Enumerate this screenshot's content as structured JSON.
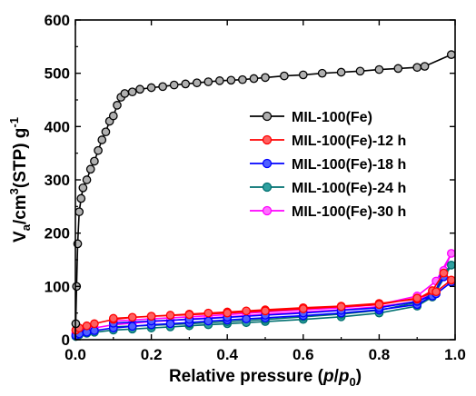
{
  "chart_data": {
    "type": "line",
    "xlabel": {
      "pre": "Relative pressure (",
      "p": "p",
      "slash": "/",
      "p0": "p",
      "sub0": "0",
      "post": ")"
    },
    "ylabel": {
      "pre": "V",
      "sub_a": "a",
      "mid": "/cm",
      "sup3": "3",
      "mid2": "(STP) g",
      "sup_neg1": "-1"
    },
    "xlim": [
      0,
      1.0
    ],
    "ylim": [
      0,
      600
    ],
    "xticks": [
      "0.0",
      "0.2",
      "0.4",
      "0.6",
      "0.8",
      "1.0"
    ],
    "yticks": [
      "0",
      "100",
      "200",
      "300",
      "400",
      "500",
      "600"
    ],
    "legend_position": "right-middle",
    "series": [
      {
        "name": "MIL-100(Fe)",
        "color": "#000000",
        "fill": "#b0b0b0",
        "x": [
          0.001,
          0.003,
          0.006,
          0.01,
          0.015,
          0.02,
          0.03,
          0.04,
          0.05,
          0.06,
          0.07,
          0.08,
          0.09,
          0.1,
          0.11,
          0.12,
          0.13,
          0.15,
          0.17,
          0.2,
          0.23,
          0.26,
          0.29,
          0.32,
          0.35,
          0.38,
          0.41,
          0.44,
          0.47,
          0.5,
          0.55,
          0.6,
          0.65,
          0.7,
          0.75,
          0.8,
          0.85,
          0.9,
          0.92,
          0.99
        ],
        "y": [
          30,
          100,
          180,
          240,
          265,
          285,
          300,
          320,
          335,
          355,
          375,
          390,
          410,
          420,
          440,
          455,
          462,
          465,
          470,
          473,
          475,
          478,
          480,
          482,
          484,
          486,
          487,
          488,
          490,
          492,
          495,
          497,
          500,
          502,
          504,
          507,
          509,
          511,
          513,
          535
        ]
      },
      {
        "name": "MIL-100(Fe)-12 h",
        "color": "#ff0000",
        "fill": "#ff6060",
        "x": [
          0.001,
          0.01,
          0.03,
          0.05,
          0.1,
          0.15,
          0.2,
          0.25,
          0.3,
          0.35,
          0.4,
          0.45,
          0.5,
          0.6,
          0.7,
          0.8,
          0.9,
          0.94,
          0.97,
          0.99,
          0.95,
          0.9,
          0.8,
          0.7,
          0.6,
          0.5,
          0.4,
          0.3,
          0.2,
          0.1
        ],
        "y": [
          18,
          22,
          26,
          30,
          38,
          42,
          44,
          46,
          48,
          50,
          52,
          54,
          56,
          60,
          63,
          68,
          76,
          92,
          125,
          112,
          90,
          78,
          66,
          62,
          58,
          54,
          50,
          47,
          44,
          40
        ]
      },
      {
        "name": "MIL-100(Fe)-18 h",
        "color": "#0000ff",
        "fill": "#5060ff",
        "x": [
          0.001,
          0.01,
          0.03,
          0.05,
          0.1,
          0.15,
          0.2,
          0.25,
          0.3,
          0.35,
          0.4,
          0.45,
          0.5,
          0.6,
          0.7,
          0.8,
          0.9,
          0.94,
          0.97,
          0.99,
          0.95,
          0.9,
          0.8,
          0.7,
          0.6,
          0.5,
          0.4,
          0.3,
          0.2,
          0.1
        ],
        "y": [
          8,
          11,
          14,
          17,
          22,
          25,
          28,
          30,
          32,
          35,
          37,
          39,
          41,
          45,
          50,
          56,
          66,
          82,
          118,
          108,
          86,
          72,
          60,
          55,
          50,
          46,
          42,
          38,
          35,
          31
        ]
      },
      {
        "name": "MIL-100(Fe)-24 h",
        "color": "#007070",
        "fill": "#30a0a0",
        "x": [
          0.001,
          0.01,
          0.03,
          0.05,
          0.1,
          0.15,
          0.2,
          0.25,
          0.3,
          0.35,
          0.4,
          0.45,
          0.5,
          0.6,
          0.7,
          0.8,
          0.9,
          0.94,
          0.97,
          0.99,
          0.95,
          0.9,
          0.8,
          0.7,
          0.6,
          0.5,
          0.4,
          0.3,
          0.2,
          0.1
        ],
        "y": [
          6,
          9,
          12,
          14,
          18,
          20,
          22,
          24,
          26,
          28,
          30,
          32,
          34,
          38,
          43,
          50,
          63,
          80,
          125,
          140,
          90,
          70,
          55,
          48,
          43,
          38,
          34,
          30,
          27,
          24
        ]
      },
      {
        "name": "MIL-100(Fe)-30 h",
        "color": "#ff00ff",
        "fill": "#ff70ff",
        "x": [
          0.001,
          0.01,
          0.03,
          0.05,
          0.1,
          0.15,
          0.2,
          0.25,
          0.3,
          0.35,
          0.4,
          0.45,
          0.5,
          0.6,
          0.7,
          0.8,
          0.9,
          0.94,
          0.97,
          0.99,
          0.95,
          0.9,
          0.8,
          0.7,
          0.6,
          0.5,
          0.4,
          0.3,
          0.2,
          0.1
        ],
        "y": [
          12,
          15,
          19,
          22,
          28,
          31,
          34,
          36,
          39,
          41,
          43,
          45,
          48,
          52,
          56,
          62,
          72,
          90,
          130,
          162,
          110,
          82,
          66,
          60,
          56,
          52,
          47,
          43,
          39,
          35
        ]
      }
    ]
  }
}
